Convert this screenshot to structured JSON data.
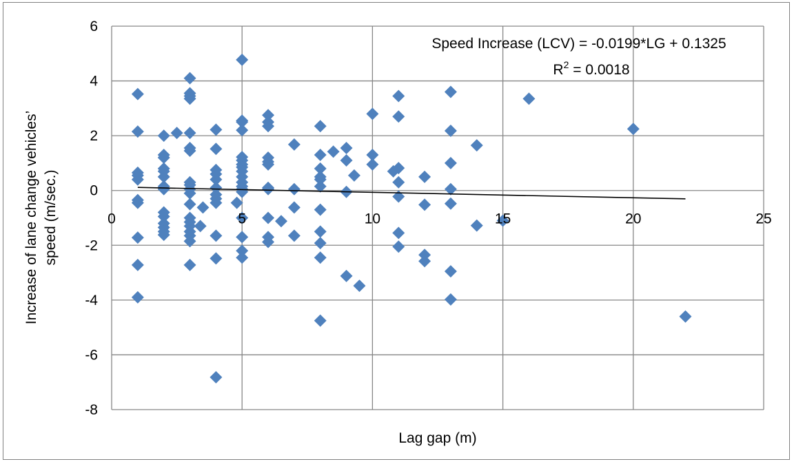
{
  "chart_data": {
    "type": "scatter",
    "title": "",
    "xlabel": "Lag gap (m)",
    "ylabel_lines": [
      "Increase of lane change vehicles’",
      "speed (m/sec.)"
    ],
    "xlim": [
      0,
      25
    ],
    "ylim": [
      -8,
      6
    ],
    "xticks": [
      0,
      5,
      10,
      15,
      20,
      25
    ],
    "yticks": [
      -8,
      -6,
      -4,
      -2,
      0,
      2,
      4,
      6
    ],
    "grid": true,
    "marker": "diamond",
    "marker_color": "#4F81BD",
    "trendline": {
      "type": "linear",
      "slope": -0.0199,
      "intercept": 0.1325,
      "x_range": [
        1,
        22
      ],
      "color": "#000000"
    },
    "equation_label": "Speed Increase (LCV) = -0.0199*LG + 0.1325",
    "r2_label_prefix": "R",
    "r2_label_sup": "2",
    "r2_label_value": " = 0.0018",
    "points": [
      [
        1,
        3.52
      ],
      [
        1,
        2.15
      ],
      [
        1,
        0.65
      ],
      [
        1,
        0.55
      ],
      [
        1,
        0.4
      ],
      [
        1,
        -0.35
      ],
      [
        1,
        -0.45
      ],
      [
        1,
        -1.72
      ],
      [
        1,
        -2.72
      ],
      [
        1,
        -3.9
      ],
      [
        2,
        2.0
      ],
      [
        2,
        1.3
      ],
      [
        2,
        1.2
      ],
      [
        2,
        0.8
      ],
      [
        2,
        0.7
      ],
      [
        2,
        0.5
      ],
      [
        2,
        0.15
      ],
      [
        2,
        0.05
      ],
      [
        2,
        -0.8
      ],
      [
        2,
        -0.95
      ],
      [
        2,
        -1.2
      ],
      [
        2,
        -1.35
      ],
      [
        2,
        -1.5
      ],
      [
        2,
        -1.62
      ],
      [
        2.5,
        2.1
      ],
      [
        3,
        4.1
      ],
      [
        3,
        3.55
      ],
      [
        3,
        3.45
      ],
      [
        3,
        3.35
      ],
      [
        3,
        2.1
      ],
      [
        3,
        1.55
      ],
      [
        3,
        1.45
      ],
      [
        3,
        0.3
      ],
      [
        3,
        0.2
      ],
      [
        3,
        0.05
      ],
      [
        3,
        -0.1
      ],
      [
        3,
        -0.5
      ],
      [
        3,
        -1.0
      ],
      [
        3,
        -1.15
      ],
      [
        3,
        -1.3
      ],
      [
        3,
        -1.5
      ],
      [
        3,
        -1.65
      ],
      [
        3,
        -1.85
      ],
      [
        3,
        -2.72
      ],
      [
        3.5,
        -0.62
      ],
      [
        3.4,
        -1.3
      ],
      [
        4,
        2.22
      ],
      [
        4,
        1.52
      ],
      [
        4,
        0.75
      ],
      [
        4,
        0.6
      ],
      [
        4,
        0.4
      ],
      [
        4,
        0.1
      ],
      [
        4,
        -0.15
      ],
      [
        4,
        -0.3
      ],
      [
        4,
        -0.45
      ],
      [
        4,
        -1.65
      ],
      [
        4,
        -2.48
      ],
      [
        4,
        -6.82
      ],
      [
        4.8,
        -0.45
      ],
      [
        5,
        4.77
      ],
      [
        5,
        2.55
      ],
      [
        5,
        2.5
      ],
      [
        5,
        2.2
      ],
      [
        5,
        1.22
      ],
      [
        5,
        1.1
      ],
      [
        5,
        0.95
      ],
      [
        5,
        0.85
      ],
      [
        5,
        0.7
      ],
      [
        5,
        0.5
      ],
      [
        5,
        0.3
      ],
      [
        5,
        0.15
      ],
      [
        5,
        0.05
      ],
      [
        5,
        -0.05
      ],
      [
        5,
        -1.0
      ],
      [
        5,
        -1.7
      ],
      [
        5,
        -2.2
      ],
      [
        5,
        -2.45
      ],
      [
        6,
        2.75
      ],
      [
        6,
        2.5
      ],
      [
        6,
        2.35
      ],
      [
        6,
        1.2
      ],
      [
        6,
        1.05
      ],
      [
        6,
        0.95
      ],
      [
        6,
        0.1
      ],
      [
        6,
        0.05
      ],
      [
        6,
        -1.0
      ],
      [
        6,
        -1.7
      ],
      [
        6,
        -1.88
      ],
      [
        6.5,
        -1.12
      ],
      [
        7,
        1.68
      ],
      [
        7,
        0.05
      ],
      [
        7,
        -0.62
      ],
      [
        7,
        -1.65
      ],
      [
        8,
        2.35
      ],
      [
        8,
        1.3
      ],
      [
        8,
        0.8
      ],
      [
        8,
        0.5
      ],
      [
        8,
        0.4
      ],
      [
        8,
        0.15
      ],
      [
        8,
        -0.7
      ],
      [
        8,
        -1.5
      ],
      [
        8,
        -1.92
      ],
      [
        8,
        -2.45
      ],
      [
        8,
        -4.75
      ],
      [
        8.5,
        1.42
      ],
      [
        9,
        1.55
      ],
      [
        9,
        1.1
      ],
      [
        9,
        -0.05
      ],
      [
        9,
        -3.12
      ],
      [
        9.3,
        0.55
      ],
      [
        9.5,
        -3.48
      ],
      [
        10,
        2.8
      ],
      [
        10,
        1.3
      ],
      [
        10,
        0.95
      ],
      [
        10.8,
        0.7
      ],
      [
        11,
        3.45
      ],
      [
        11,
        2.7
      ],
      [
        11,
        0.82
      ],
      [
        11,
        0.3
      ],
      [
        11,
        -0.22
      ],
      [
        11,
        -1.55
      ],
      [
        11,
        -2.05
      ],
      [
        12,
        0.5
      ],
      [
        12,
        -0.52
      ],
      [
        12,
        -2.35
      ],
      [
        12,
        -2.58
      ],
      [
        13,
        3.6
      ],
      [
        13,
        2.18
      ],
      [
        13,
        1.0
      ],
      [
        13,
        0.05
      ],
      [
        13,
        -0.48
      ],
      [
        13,
        -2.95
      ],
      [
        13,
        -3.98
      ],
      [
        14,
        1.65
      ],
      [
        14,
        -1.28
      ],
      [
        15,
        -1.1
      ],
      [
        16,
        3.35
      ],
      [
        20,
        2.25
      ],
      [
        22,
        -4.6
      ]
    ]
  }
}
